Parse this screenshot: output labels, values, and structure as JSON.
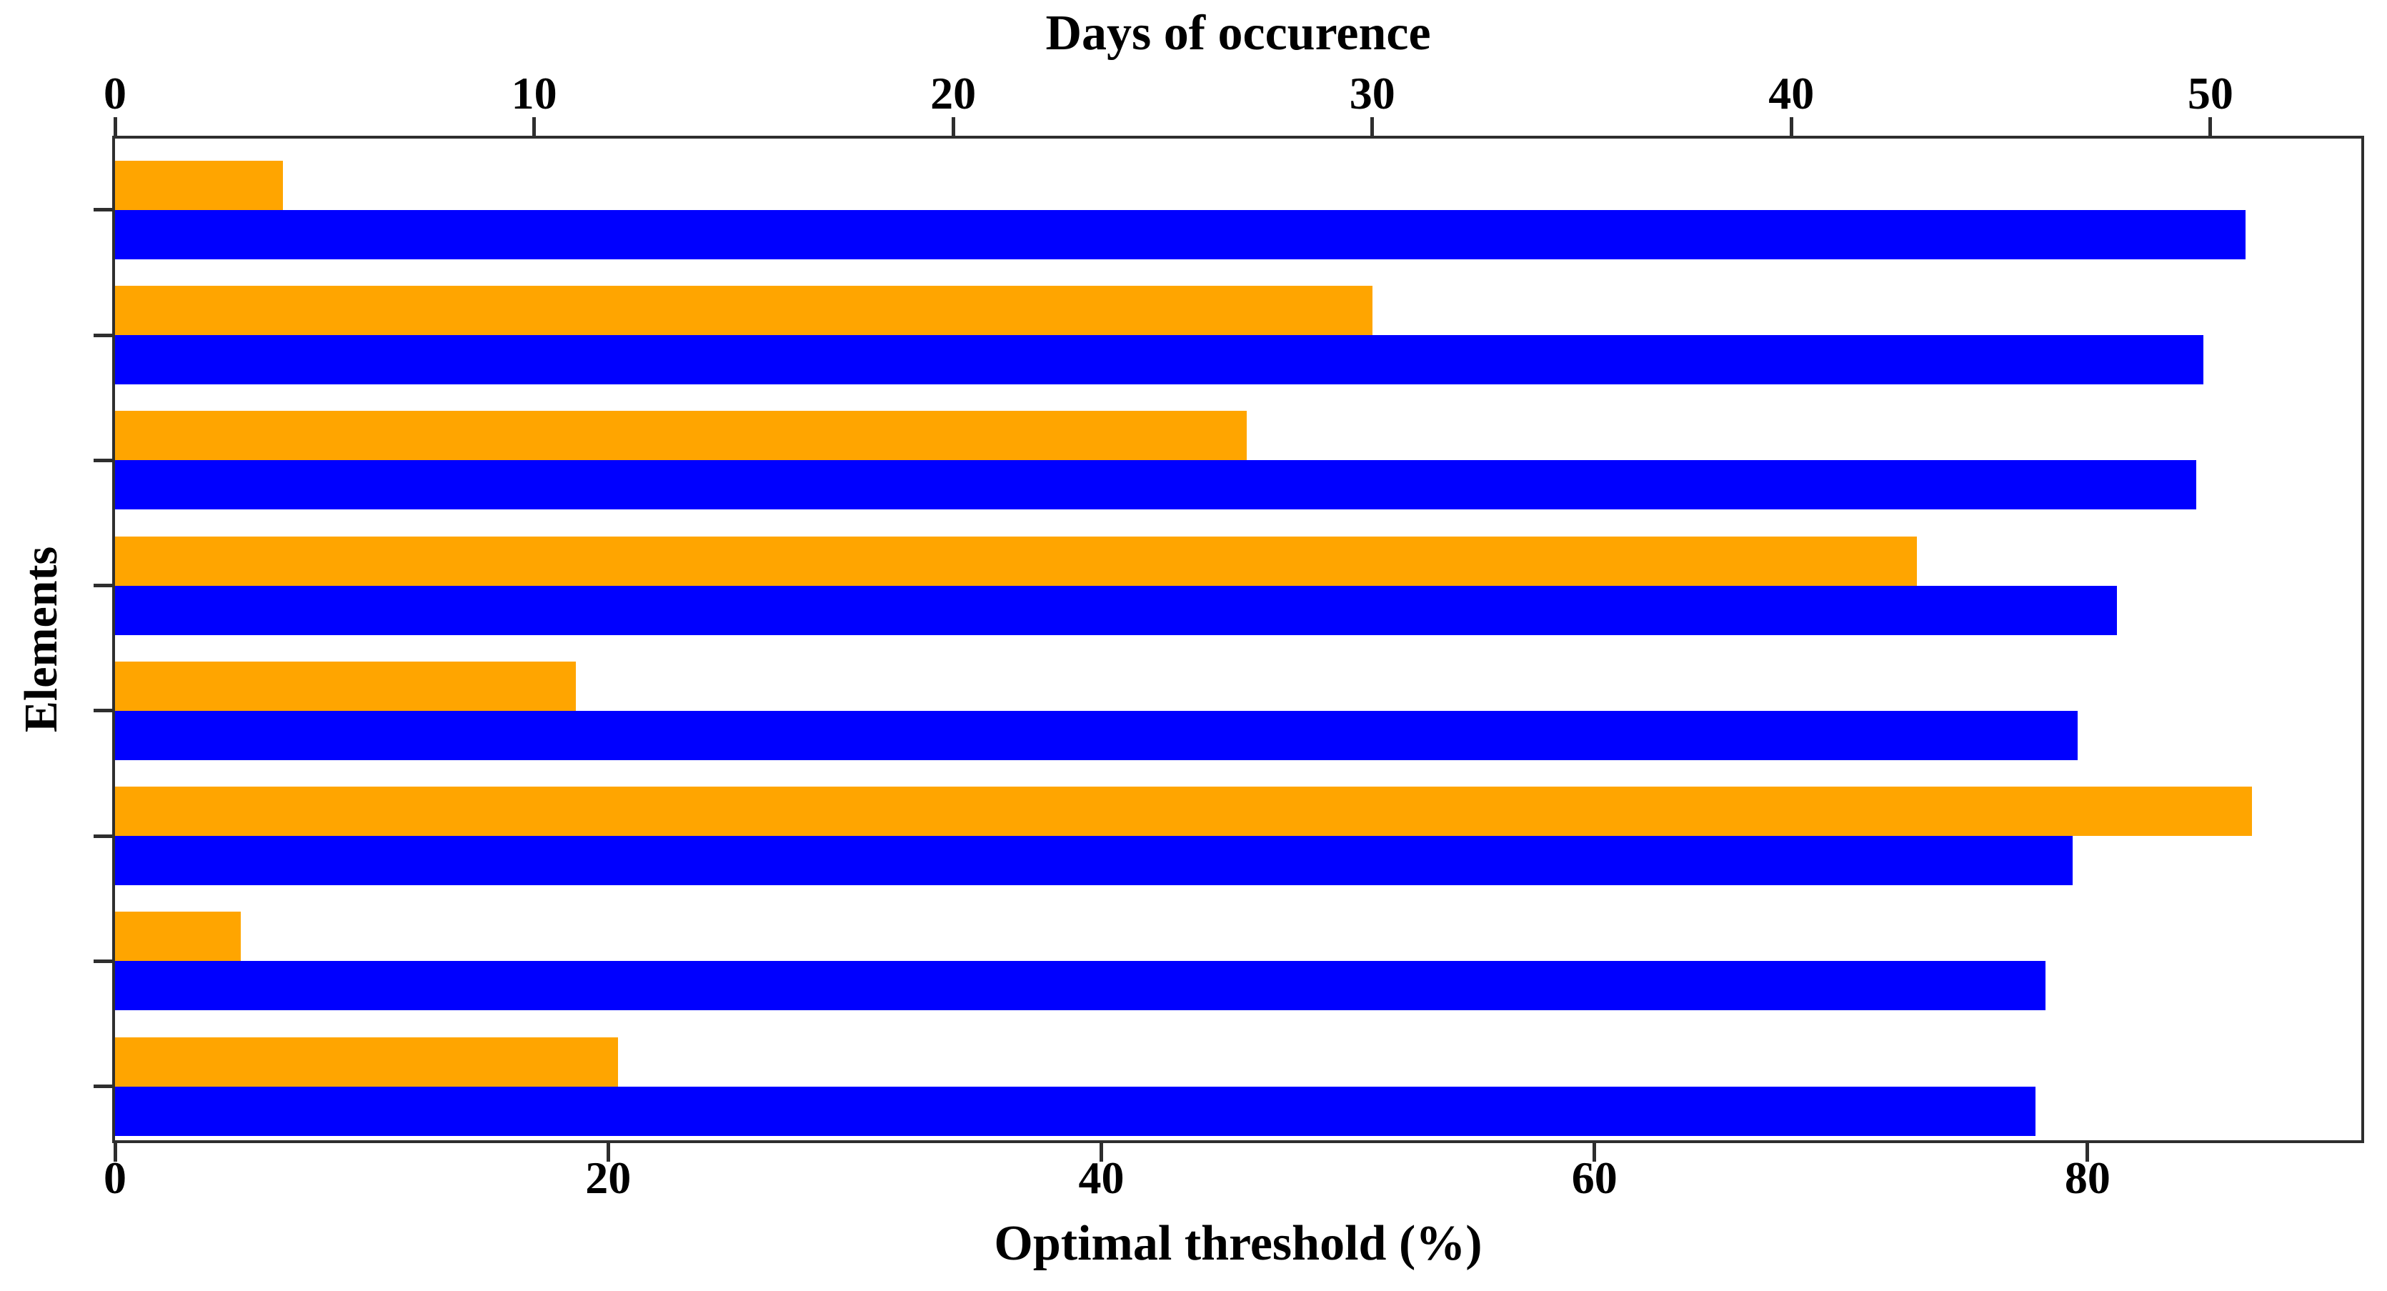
{
  "chart_data": {
    "type": "bar",
    "orientation": "horizontal",
    "rows": 8,
    "top_axis": {
      "label": "Days of occurence",
      "ticks": [
        0,
        10,
        20,
        30,
        40,
        50
      ],
      "range": [
        0,
        53.6
      ]
    },
    "bottom_axis": {
      "label": "Optimal threshold (%)",
      "ticks": [
        0,
        20,
        40,
        60,
        80
      ],
      "range": [
        0,
        91.1
      ]
    },
    "y_axis": {
      "label": "Elements",
      "tick_labels_visible": false
    },
    "series": [
      {
        "name": "Days of occurence",
        "axis": "top",
        "color": "#FFA500",
        "values": [
          4,
          30,
          27,
          43,
          11,
          51,
          3,
          12
        ]
      },
      {
        "name": "Optimal threshold (%)",
        "axis": "bottom",
        "color": "#0000FF",
        "values": [
          86.4,
          84.7,
          84.4,
          81.2,
          79.6,
          79.4,
          78.3,
          77.9
        ]
      }
    ],
    "axis_color": "#2e2e2e",
    "legend": "none"
  }
}
